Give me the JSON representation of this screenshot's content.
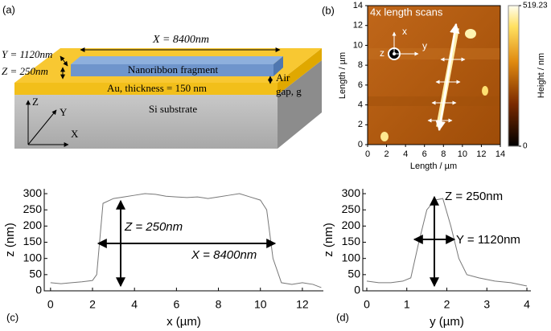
{
  "panel_labels": [
    "(a)",
    "(b)",
    "(c)",
    "(d)"
  ],
  "schematic": {
    "ribbon_label": "Nanoribbon fragment",
    "gold_label": "Au, thickness = 150 nm",
    "substrate_label": "Si substrate",
    "length_label": "X = 8400nm",
    "width_label": "Y = 1120nm",
    "height_label": "Z = 250nm",
    "gap_label": [
      "Air",
      "gap, g"
    ],
    "axes": [
      "Z",
      "Y",
      "X"
    ]
  },
  "afm": {
    "annotation": "4x length scans",
    "axis_glyph_labels": [
      "x",
      "y",
      "z"
    ],
    "xlabel": "Length / µm",
    "ylabel": "Length / µm",
    "xlim": [
      0,
      14
    ],
    "ylim": [
      0,
      14
    ],
    "xticks": [
      0,
      2,
      4,
      6,
      8,
      10,
      12,
      14
    ],
    "yticks": [
      0,
      2,
      4,
      6,
      8,
      10,
      12,
      14
    ],
    "colorbar": {
      "label": "Height / nm",
      "lim": [
        0,
        519.23
      ],
      "ticks": [
        0,
        519.23
      ]
    }
  },
  "chart_data": [
    {
      "type": "line",
      "xlabel": "x (µm)",
      "ylabel": "z (nm)",
      "x": [
        0,
        0.5,
        1,
        1.5,
        2,
        2.2,
        2.5,
        3,
        3.5,
        4,
        4.5,
        5,
        5.5,
        6,
        6.5,
        7,
        7.5,
        8,
        8.5,
        9,
        9.5,
        10,
        10.3,
        10.6,
        11,
        11.5,
        12,
        12.5,
        12.9
      ],
      "values": [
        25,
        22,
        25,
        28,
        32,
        50,
        270,
        285,
        290,
        295,
        300,
        298,
        292,
        290,
        288,
        290,
        285,
        290,
        295,
        300,
        290,
        280,
        250,
        100,
        25,
        20,
        25,
        20,
        10
      ],
      "color": "#777777",
      "xlim": [
        -0.3,
        13
      ],
      "ylim": [
        0,
        315
      ],
      "xticks": [
        0,
        2,
        4,
        6,
        8,
        10,
        12
      ],
      "yticks": [
        0,
        50,
        100,
        150,
        200,
        250,
        300
      ],
      "annotations": [
        "Z = 250nm",
        "X = 8400nm"
      ]
    },
    {
      "type": "line",
      "xlabel": "y (µm)",
      "ylabel": "z (nm)",
      "x": [
        0,
        0.3,
        0.6,
        0.9,
        1.1,
        1.3,
        1.5,
        1.7,
        1.9,
        2.1,
        2.3,
        2.5,
        2.8,
        3.2,
        3.6,
        4
      ],
      "values": [
        30,
        25,
        25,
        30,
        40,
        150,
        250,
        280,
        285,
        200,
        100,
        50,
        40,
        30,
        25,
        15
      ],
      "color": "#777777",
      "xlim": [
        -0.1,
        4.1
      ],
      "ylim": [
        0,
        315
      ],
      "xticks": [
        0,
        1,
        2,
        3,
        4
      ],
      "yticks": [
        0,
        50,
        100,
        150,
        200,
        250,
        300
      ],
      "annotations": [
        "Z = 250nm",
        "Y = 1120nm"
      ]
    }
  ]
}
